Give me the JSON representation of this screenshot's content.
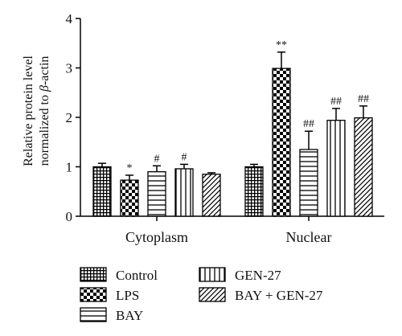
{
  "chart_data": {
    "type": "bar",
    "title": "",
    "ylabel_line1": "Relative protein level",
    "ylabel_line2_prefix": "normalized to ",
    "ylabel_line2_italic": "β",
    "ylabel_line2_suffix": "-actin",
    "xlabel": "",
    "ylim": [
      0,
      4
    ],
    "yticks": [
      0,
      1,
      2,
      3,
      4
    ],
    "groups": [
      "Cytoplasm",
      "Nuclear"
    ],
    "series": [
      {
        "name": "Control",
        "pattern": "grid",
        "values": [
          1.0,
          1.0
        ],
        "errors": [
          0.07,
          0.05
        ],
        "annotations": [
          "",
          ""
        ]
      },
      {
        "name": "LPS",
        "pattern": "checker",
        "values": [
          0.73,
          2.99
        ],
        "errors": [
          0.1,
          0.33
        ],
        "annotations": [
          "*",
          "**"
        ]
      },
      {
        "name": "BAY",
        "pattern": "hlines",
        "values": [
          0.9,
          1.35
        ],
        "errors": [
          0.12,
          0.37
        ],
        "annotations": [
          "#",
          "##"
        ]
      },
      {
        "name": "GEN-27",
        "pattern": "vlines",
        "values": [
          0.96,
          1.94
        ],
        "errors": [
          0.09,
          0.24
        ],
        "annotations": [
          "#",
          "##"
        ]
      },
      {
        "name": "BAY + GEN-27",
        "pattern": "diagonal",
        "values": [
          0.85,
          1.99
        ],
        "errors": [
          0.03,
          0.24
        ],
        "annotations": [
          "",
          "##"
        ]
      }
    ],
    "legend_position": "bottom"
  }
}
